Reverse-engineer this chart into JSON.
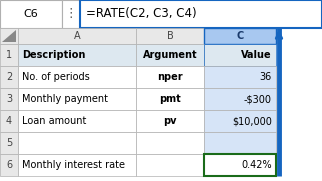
{
  "formula_bar_cell": "C6",
  "formula_bar_formula": "=RATE(C2, C3, C4)",
  "col_headers": [
    "A",
    "B",
    "C"
  ],
  "row_headers": [
    "1",
    "2",
    "3",
    "4",
    "5",
    "6"
  ],
  "rows": [
    [
      "Description",
      "Argument",
      "Value"
    ],
    [
      "No. of periods",
      "nper",
      "36"
    ],
    [
      "Monthly payment",
      "pmt",
      "-$300"
    ],
    [
      "Loan amount",
      "pv",
      "$10,000"
    ],
    [
      "",
      "",
      ""
    ],
    [
      "Monthly interest rate",
      "",
      "0.42%"
    ]
  ],
  "header_bg": "#d9d9f3",
  "col_header_bg": "#e8e8e8",
  "row_header_bg": "#e8e8e8",
  "selected_col_bg": "#d6e4f7",
  "selected_col_header_bg": "#a8c8f0",
  "formula_bar_bg": "#ffffff",
  "formula_border": "#1565c0",
  "cell_border_color": "#b0b0b0",
  "result_cell_border": "#1a6b1a",
  "result_cell_bg": "#ffffff",
  "bg_color": "#ffffff",
  "row1_bg": "#dde8f0",
  "arrow_color": "#1565c0"
}
